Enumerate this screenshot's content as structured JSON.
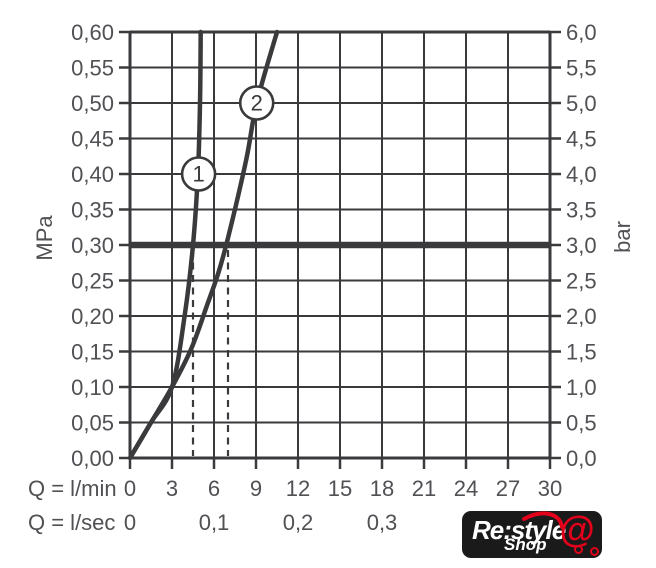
{
  "chart_data": {
    "type": "line",
    "title": "",
    "y_axis_left": {
      "label": "MPa",
      "min": 0.0,
      "max": 0.6,
      "step": 0.05,
      "tick_labels": [
        "0,00",
        "0,05",
        "0,10",
        "0,15",
        "0,20",
        "0,25",
        "0,30",
        "0,35",
        "0,40",
        "0,45",
        "0,50",
        "0,55",
        "0,60"
      ]
    },
    "y_axis_right": {
      "label": "bar",
      "min": 0.0,
      "max": 6.0,
      "step": 0.5,
      "tick_labels": [
        "0,0",
        "0,5",
        "1,0",
        "1,5",
        "2,0",
        "2,5",
        "3,0",
        "3,5",
        "4,0",
        "4,5",
        "5,0",
        "5,5",
        "6,0"
      ]
    },
    "x_axis": {
      "label": "Q = l/min",
      "min": 0,
      "max": 30,
      "step": 3,
      "tick_labels": [
        "0",
        "3",
        "6",
        "9",
        "12",
        "15",
        "18",
        "21",
        "24",
        "27",
        "30"
      ]
    },
    "x_axis_secondary": {
      "label": "Q = l/sec",
      "ticks": [
        {
          "at_lmin": 0,
          "label": "0"
        },
        {
          "at_lmin": 6,
          "label": "0,1"
        },
        {
          "at_lmin": 12,
          "label": "0,2"
        },
        {
          "at_lmin": 18,
          "label": "0,3"
        }
      ]
    },
    "reference_line": {
      "mpa": 0.3,
      "bar": 3.0
    },
    "guide_lines": [
      {
        "at_lmin": 4.5,
        "from_mpa": 0.3,
        "to_mpa": 0.0,
        "style": "dashed"
      },
      {
        "at_lmin": 7.0,
        "from_mpa": 0.3,
        "to_mpa": 0.0,
        "style": "dashed"
      }
    ],
    "series": [
      {
        "name": "1",
        "marker": {
          "at_lmin": 4.9,
          "at_mpa": 0.4
        },
        "points_lmin_mpa": [
          [
            0,
            0
          ],
          [
            1.5,
            0.05
          ],
          [
            3,
            0.1
          ],
          [
            3.9,
            0.2
          ],
          [
            4.5,
            0.3
          ],
          [
            4.85,
            0.4
          ],
          [
            5.0,
            0.5
          ],
          [
            5.05,
            0.6
          ]
        ]
      },
      {
        "name": "2",
        "marker": {
          "at_lmin": 9.05,
          "at_mpa": 0.5
        },
        "points_lmin_mpa": [
          [
            0,
            0
          ],
          [
            1.5,
            0.05
          ],
          [
            3,
            0.1
          ],
          [
            4.4,
            0.155
          ],
          [
            5.5,
            0.215
          ],
          [
            6.3,
            0.26
          ],
          [
            7.0,
            0.31
          ],
          [
            8.3,
            0.42
          ],
          [
            9.05,
            0.5
          ],
          [
            10.5,
            0.6
          ]
        ]
      }
    ],
    "grid": true,
    "legend": "none",
    "colors": {
      "line": "#3a3a3c",
      "text": "#515155",
      "background": "#ffffff"
    }
  },
  "logo": {
    "text_primary": "Re:style",
    "text_secondary": "Shop",
    "at_symbol": "@",
    "colors": {
      "background": "#1a1a1a",
      "accent": "#e2001a",
      "text": "#ffffff"
    }
  }
}
